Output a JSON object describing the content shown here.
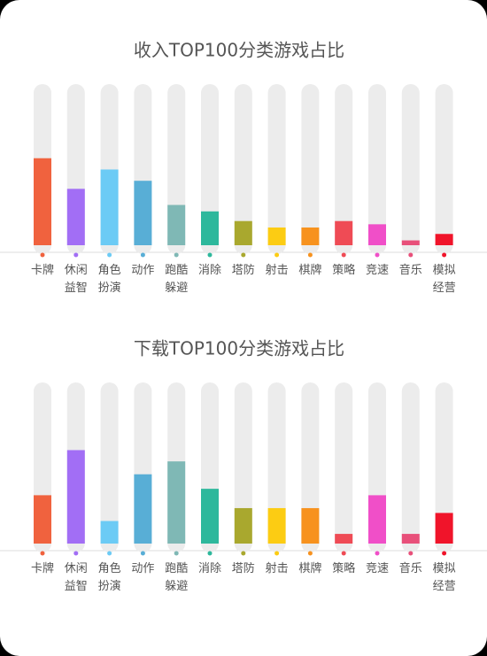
{
  "chart_data": [
    {
      "type": "bar",
      "title": "收入TOP100分类游戏占比",
      "categories": [
        [
          "卡牌"
        ],
        [
          "休闲",
          "益智"
        ],
        [
          "角色",
          "扮演"
        ],
        [
          "动作"
        ],
        [
          "跑酷",
          "躲避"
        ],
        [
          "消除"
        ],
        [
          "塔防"
        ],
        [
          "射击"
        ],
        [
          "棋牌"
        ],
        [
          "策略"
        ],
        [
          "竞速"
        ],
        [
          "音乐"
        ],
        [
          "模拟",
          "经营"
        ]
      ],
      "values": [
        54,
        35,
        47,
        40,
        25,
        21,
        15,
        11,
        11,
        15,
        13,
        3,
        7
      ],
      "colors": [
        "#f0623e",
        "#a26ef5",
        "#6ccbf5",
        "#58aed6",
        "#7fb8b5",
        "#2db89c",
        "#a9a82e",
        "#fccc13",
        "#f7921e",
        "#ef4b55",
        "#f04fc8",
        "#e8507a",
        "#f0142a"
      ],
      "ylim": [
        0,
        100
      ]
    },
    {
      "type": "bar",
      "title": "下载TOP100分类游戏占比",
      "categories": [
        [
          "卡牌"
        ],
        [
          "休闲",
          "益智"
        ],
        [
          "角色",
          "扮演"
        ],
        [
          "动作"
        ],
        [
          "跑酷",
          "躲避"
        ],
        [
          "消除"
        ],
        [
          "塔防"
        ],
        [
          "射击"
        ],
        [
          "棋牌"
        ],
        [
          "策略"
        ],
        [
          "竞速"
        ],
        [
          "音乐"
        ],
        [
          "模拟",
          "经营"
        ]
      ],
      "values": [
        30,
        58,
        14,
        43,
        51,
        34,
        22,
        22,
        22,
        6,
        30,
        6,
        19
      ],
      "colors": [
        "#f0623e",
        "#a26ef5",
        "#6ccbf5",
        "#58aed6",
        "#7fb8b5",
        "#2db89c",
        "#a9a82e",
        "#fccc13",
        "#f7921e",
        "#ef4b55",
        "#f04fc8",
        "#e8507a",
        "#f0142a"
      ],
      "ylim": [
        0,
        100
      ]
    }
  ]
}
